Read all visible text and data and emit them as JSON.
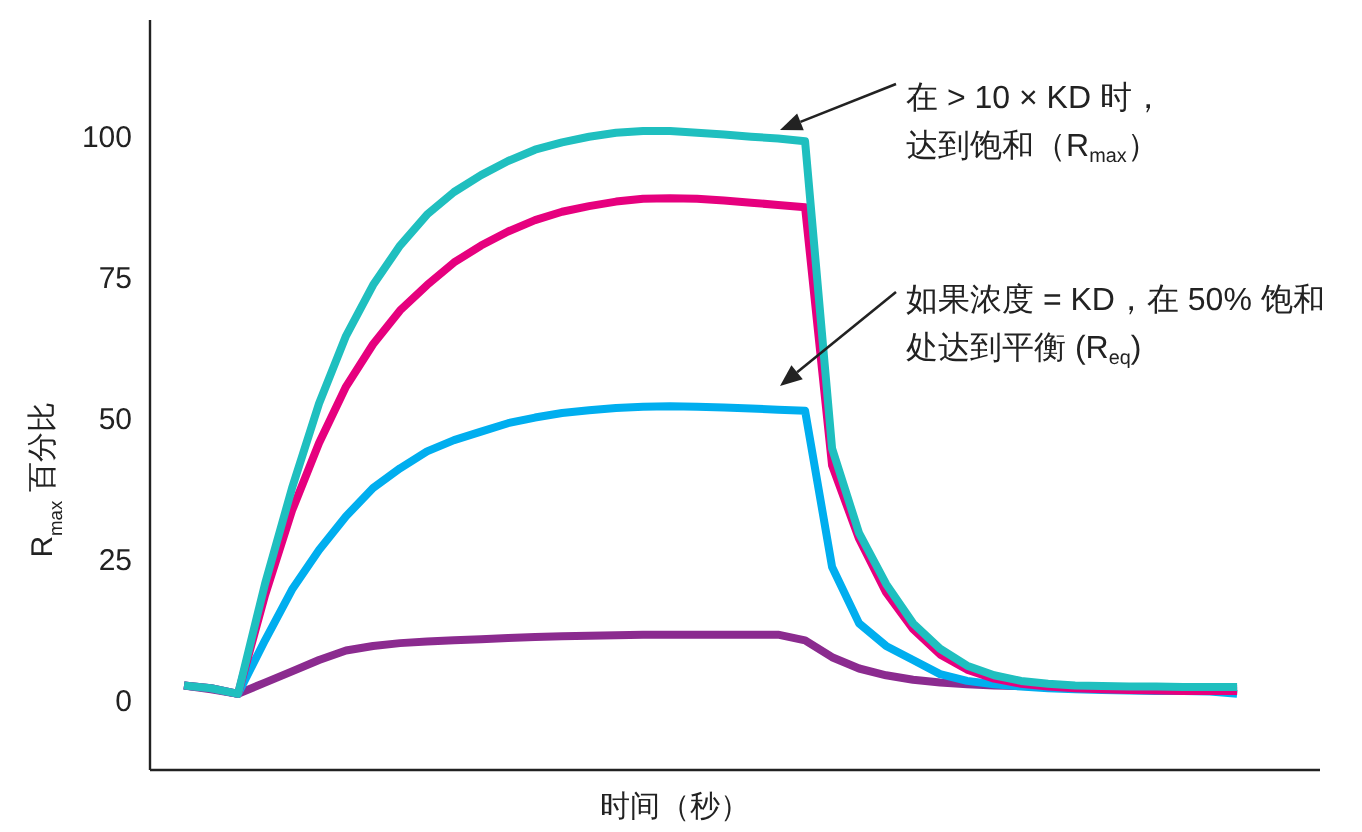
{
  "chart_data": {
    "type": "line",
    "xlabel": "时间（秒）",
    "ylabel": "R$_{max}$ 百分比",
    "categories": [
      null,
      null,
      null,
      null,
      null,
      null,
      null,
      null,
      null,
      null,
      null,
      null,
      null,
      null,
      null,
      null,
      null,
      null,
      null,
      null,
      null,
      null,
      null,
      null,
      null,
      null,
      null,
      null,
      null,
      null,
      null,
      null,
      null,
      null,
      null,
      null,
      null,
      null,
      null,
      null
    ],
    "ylim": [
      -12,
      121
    ],
    "yticks": [
      0,
      25,
      50,
      75,
      100
    ],
    "tick_labels": "y",
    "series": [
      {
        "color": "#8b2b8f",
        "values": [
          3,
          2.3,
          1.5,
          3.5,
          5.5,
          7.5,
          9.2,
          10,
          10.5,
          10.8,
          11,
          11.2,
          11.4,
          11.6,
          11.7,
          11.8,
          11.9,
          12,
          12,
          12,
          12,
          12,
          12,
          11,
          8,
          6,
          4.8,
          4,
          3.5,
          3.2,
          3,
          2.9,
          2.8,
          2.7,
          2.6,
          2.5,
          2.5,
          2.4,
          2.4,
          2.4
        ]
      },
      {
        "color": "#00aeef",
        "values": [
          3,
          2.5,
          1.5,
          11,
          20,
          27,
          33,
          38,
          41.5,
          44.5,
          46.5,
          48,
          49.5,
          50.5,
          51.3,
          51.8,
          52.2,
          52.4,
          52.5,
          52.4,
          52.3,
          52.1,
          51.9,
          51.7,
          24,
          14,
          10,
          7.5,
          5,
          3.8,
          3.2,
          2.8,
          2.5,
          2.3,
          2.2,
          2.1,
          2,
          2,
          1.9,
          1.5
        ]
      },
      {
        "color": "#e6007e",
        "values": [
          3,
          2.5,
          1.5,
          19,
          34,
          46,
          56,
          63.5,
          69.5,
          74,
          78,
          81,
          83.5,
          85.5,
          87,
          88,
          88.8,
          89.3,
          89.4,
          89.3,
          89,
          88.6,
          88.2,
          87.8,
          42,
          29,
          19.5,
          13,
          8.5,
          5.8,
          4.2,
          3.3,
          2.8,
          2.5,
          2.3,
          2.2,
          2.1,
          2,
          2,
          2
        ]
      },
      {
        "color": "#1fbfbf",
        "values": [
          3,
          2.5,
          1.5,
          21,
          38,
          53,
          65,
          74,
          81,
          86.5,
          90.5,
          93.5,
          96,
          98,
          99.3,
          100.3,
          101,
          101.3,
          101.3,
          101,
          100.7,
          100.3,
          100,
          99.5,
          45,
          30,
          21,
          14,
          9.5,
          6.5,
          4.8,
          3.8,
          3.3,
          3,
          2.9,
          2.8,
          2.8,
          2.7,
          2.7,
          2.7
        ]
      }
    ],
    "annotations": [
      "在 > 10 × KD 时，",
      "达到饱和（R$_{max}$）",
      "如果浓度 = KD，在 50% 饱和",
      "处达到平衡 (R$_{eq}$)"
    ]
  }
}
